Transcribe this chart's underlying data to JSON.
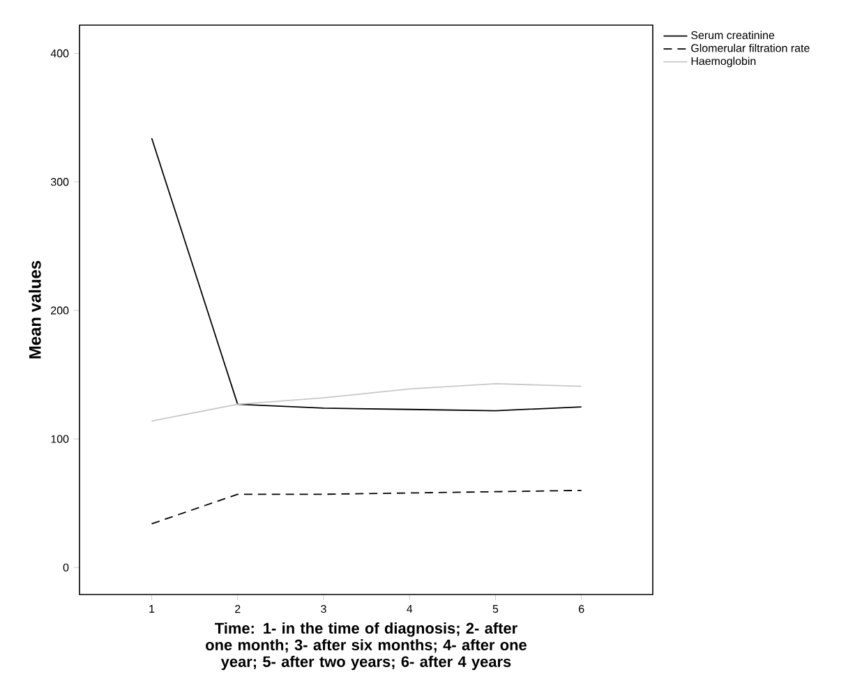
{
  "chart_data": {
    "type": "line",
    "ylabel": "Mean values",
    "xlabel": "Time: 1- in the time of diagnosis; 2- after one month; 3- after six months; 4- after one year; 5- after two years; 6- after 4 years",
    "x": [
      1,
      2,
      3,
      4,
      5,
      6
    ],
    "xlim": [
      0.16,
      6.83
    ],
    "xticks": [
      1,
      2,
      3,
      4,
      5,
      6
    ],
    "ylim": [
      -21,
      422
    ],
    "yticks": [
      0,
      100,
      200,
      300,
      400
    ],
    "grid": false,
    "legend": "right",
    "series": [
      {
        "name": "Serum creatinine",
        "color": "#000000",
        "line_style": "solid",
        "values": [
          334,
          127,
          124,
          123,
          122,
          125
        ]
      },
      {
        "name": "Glomerular filtration rate",
        "color": "#000000",
        "line_style": "dashed",
        "values": [
          34,
          57,
          57,
          58,
          59,
          60
        ]
      },
      {
        "name": "Haemoglobin",
        "color": "#c8c8c8",
        "line_style": "solid",
        "values": [
          114,
          127,
          132,
          139,
          143,
          141
        ]
      }
    ]
  }
}
